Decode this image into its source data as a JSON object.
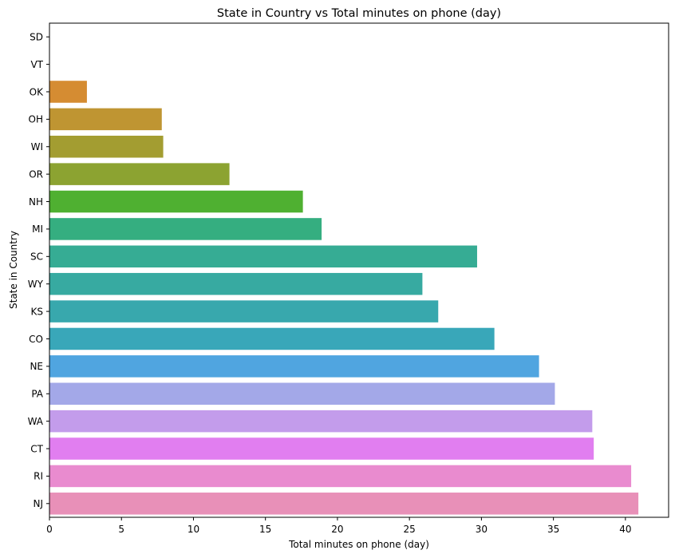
{
  "chart_data": {
    "type": "bar",
    "orientation": "horizontal",
    "title": "State in Country vs Total minutes on phone (day)",
    "xlabel": "Total minutes on phone (day)",
    "ylabel": "State in Country",
    "xlim": [
      0,
      43
    ],
    "xticks": [
      "0",
      "5",
      "10",
      "15",
      "20",
      "25",
      "30",
      "35",
      "40"
    ],
    "categories": [
      "SD",
      "VT",
      "OK",
      "OH",
      "WI",
      "OR",
      "NH",
      "MI",
      "SC",
      "WY",
      "KS",
      "CO",
      "NE",
      "PA",
      "WA",
      "CT",
      "RI",
      "NJ"
    ],
    "values": [
      0,
      0,
      2.6,
      7.8,
      7.9,
      12.5,
      17.6,
      18.9,
      29.7,
      25.9,
      27.0,
      30.9,
      34.0,
      35.1,
      37.7,
      37.8,
      40.4,
      40.9
    ],
    "colors": [
      "#f77189",
      "#f7754f",
      "#d58c32",
      "#bf9532",
      "#a39d31",
      "#8ca331",
      "#4fb031",
      "#35ae80",
      "#36ac94",
      "#37aaa1",
      "#38a8ad",
      "#39a7b9",
      "#50a5e0",
      "#a3a8e8",
      "#c39ceb",
      "#e17ef0",
      "#e98bcf",
      "#e890b8"
    ],
    "grid": false
  }
}
